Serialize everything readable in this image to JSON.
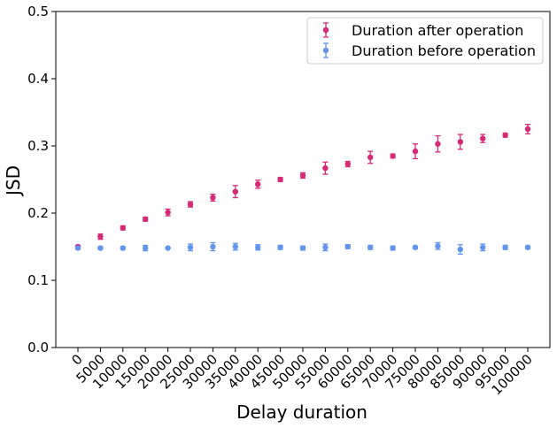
{
  "chart_data": {
    "type": "scatter",
    "xlabel": "Delay duration",
    "ylabel": "JSD",
    "ylim": [
      0,
      0.5
    ],
    "yticks": [
      "0.0",
      "0.1",
      "0.2",
      "0.3",
      "0.4",
      "0.5"
    ],
    "categories": [
      "0",
      "5000",
      "10000",
      "15000",
      "20000",
      "25000",
      "30000",
      "35000",
      "40000",
      "45000",
      "50000",
      "55000",
      "60000",
      "65000",
      "70000",
      "75000",
      "80000",
      "85000",
      "90000",
      "95000",
      "100000"
    ],
    "legend_position": "top-right",
    "grid": false,
    "series": [
      {
        "name": "Duration after operation",
        "color": "#d62976",
        "values": [
          0.15,
          0.165,
          0.178,
          0.191,
          0.201,
          0.213,
          0.223,
          0.232,
          0.243,
          0.25,
          0.256,
          0.267,
          0.273,
          0.283,
          0.285,
          0.292,
          0.303,
          0.306,
          0.311,
          0.316,
          0.325
        ],
        "errors": [
          0.002,
          0.004,
          0.003,
          0.003,
          0.005,
          0.004,
          0.005,
          0.009,
          0.006,
          0.003,
          0.004,
          0.009,
          0.004,
          0.009,
          0.003,
          0.011,
          0.012,
          0.011,
          0.006,
          0.003,
          0.007
        ]
      },
      {
        "name": "Duration before operation",
        "color": "#6495ed",
        "values": [
          0.148,
          0.148,
          0.148,
          0.148,
          0.148,
          0.149,
          0.15,
          0.15,
          0.149,
          0.149,
          0.148,
          0.149,
          0.15,
          0.149,
          0.148,
          0.149,
          0.151,
          0.146,
          0.149,
          0.149,
          0.149
        ],
        "errors": [
          0.002,
          0.002,
          0.002,
          0.004,
          0.001,
          0.005,
          0.006,
          0.005,
          0.004,
          0.003,
          0.003,
          0.005,
          0.003,
          0.003,
          0.003,
          0.002,
          0.005,
          0.007,
          0.005,
          0.003,
          0.002
        ]
      }
    ]
  }
}
